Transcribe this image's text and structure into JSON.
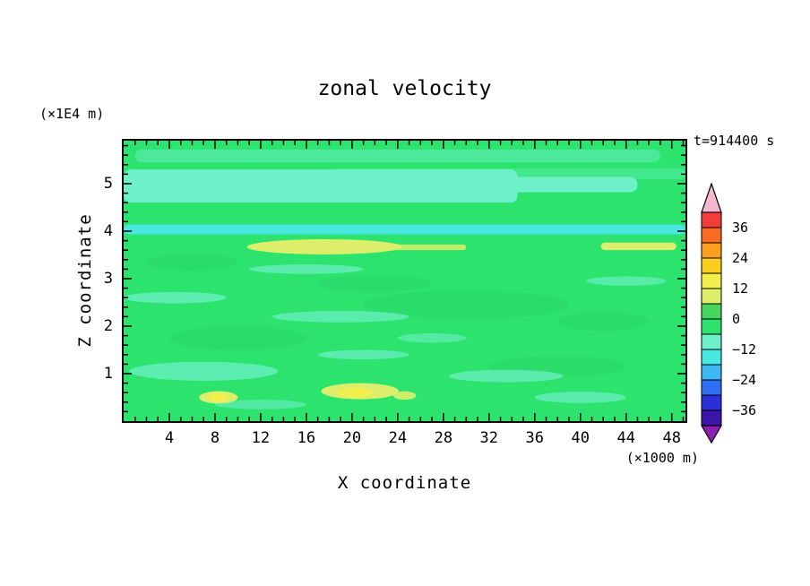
{
  "chart_data": {
    "type": "filled_contour",
    "title": "zonal velocity",
    "time_label": "t=914400 s",
    "xlabel": "X coordinate",
    "ylabel": "Z coordinate",
    "x_axis_unit": "(×1000 m)",
    "y_axis_unit": "(×1E4 m)",
    "xlim": [
      0,
      49.2
    ],
    "ylim": [
      0,
      5.905
    ],
    "x_major_ticks": [
      4,
      8,
      12,
      16,
      20,
      24,
      28,
      32,
      36,
      40,
      44,
      48
    ],
    "x_minor_step": 1,
    "y_major_ticks": [
      1,
      2,
      3,
      4,
      5
    ],
    "y_minor_step": 0.2,
    "contour_interval": 6,
    "levels_range": [
      -42,
      42
    ],
    "background_level_color": "#2be36d",
    "colorbar": {
      "labels": [
        "36",
        "24",
        "12",
        "0",
        "−12",
        "−24",
        "−36"
      ],
      "over_color": "#f5b8cf",
      "under_color": "#8c1fb4",
      "segments": [
        {
          "range": [
            36,
            42
          ],
          "color": "#f23d3d"
        },
        {
          "range": [
            30,
            36
          ],
          "color": "#fb6b24"
        },
        {
          "range": [
            24,
            30
          ],
          "color": "#fc9f20"
        },
        {
          "range": [
            18,
            24
          ],
          "color": "#fccf1f"
        },
        {
          "range": [
            12,
            18
          ],
          "color": "#f2ee4c"
        },
        {
          "range": [
            6,
            12
          ],
          "color": "#ddef6a"
        },
        {
          "range": [
            0,
            6
          ],
          "color": "#44d65c"
        },
        {
          "range": [
            -6,
            0
          ],
          "color": "#2be36d"
        },
        {
          "range": [
            -12,
            -6
          ],
          "color": "#6ef0c8"
        },
        {
          "range": [
            -18,
            -12
          ],
          "color": "#46e8e0"
        },
        {
          "range": [
            -24,
            -18
          ],
          "color": "#3fb9f2"
        },
        {
          "range": [
            -30,
            -24
          ],
          "color": "#2f6ff5"
        },
        {
          "range": [
            -36,
            -30
          ],
          "color": "#2b2fd8"
        },
        {
          "range": [
            -42,
            -36
          ],
          "color": "#3c14a8"
        }
      ]
    },
    "features": [
      {
        "shape": "ellipse",
        "x": 30,
        "z": 2.45,
        "rx": 9,
        "rz": 0.3,
        "color": "#29cf63",
        "opacity": 0.35
      },
      {
        "shape": "ellipse",
        "x": 10,
        "z": 1.75,
        "rx": 6,
        "rz": 0.25,
        "color": "#29cf63",
        "opacity": 0.35
      },
      {
        "shape": "ellipse",
        "x": 38,
        "z": 1.15,
        "rx": 6,
        "rz": 0.22,
        "color": "#29cf63",
        "opacity": 0.35
      },
      {
        "shape": "ellipse",
        "x": 22,
        "z": 2.9,
        "rx": 5,
        "rz": 0.18,
        "color": "#29cf63",
        "opacity": 0.3
      },
      {
        "shape": "ellipse",
        "x": 42,
        "z": 2.1,
        "rx": 4,
        "rz": 0.2,
        "color": "#29cf63",
        "opacity": 0.3
      },
      {
        "shape": "ellipse",
        "x": 6,
        "z": 3.35,
        "rx": 4,
        "rz": 0.18,
        "color": "#29cf63",
        "opacity": 0.3
      },
      {
        "shape": "band",
        "x0": 1,
        "x1": 47,
        "z0": 5.45,
        "z1": 5.72,
        "color": "#6ef0c8",
        "opacity": 0.5
      },
      {
        "shape": "band",
        "x0": 18,
        "x1": 49.2,
        "z0": 5.1,
        "z1": 5.32,
        "color": "#6ef0c8",
        "opacity": 0.35
      },
      {
        "shape": "band",
        "x0": 0,
        "x1": 34.5,
        "z0": 4.6,
        "z1": 5.3,
        "color": "#6ef0c8"
      },
      {
        "shape": "band",
        "x0": 30,
        "x1": 45,
        "z0": 4.82,
        "z1": 5.14,
        "color": "#6ef0c8"
      },
      {
        "shape": "band",
        "x0": 0,
        "x1": 49.2,
        "z0": 3.93,
        "z1": 4.14,
        "color": "#46e8e0"
      },
      {
        "shape": "ellipse",
        "x": 4.5,
        "z": 2.6,
        "rx": 4.5,
        "rz": 0.12,
        "color": "#6ef0c8",
        "opacity": 0.75
      },
      {
        "shape": "ellipse",
        "x": 16,
        "z": 3.2,
        "rx": 5,
        "rz": 0.1,
        "color": "#6ef0c8",
        "opacity": 0.7
      },
      {
        "shape": "ellipse",
        "x": 19,
        "z": 2.2,
        "rx": 6,
        "rz": 0.12,
        "color": "#6ef0c8",
        "opacity": 0.7
      },
      {
        "shape": "ellipse",
        "x": 7,
        "z": 1.05,
        "rx": 6.5,
        "rz": 0.2,
        "color": "#6ef0c8",
        "opacity": 0.75
      },
      {
        "shape": "ellipse",
        "x": 21,
        "z": 1.4,
        "rx": 4,
        "rz": 0.1,
        "color": "#6ef0c8",
        "opacity": 0.7
      },
      {
        "shape": "ellipse",
        "x": 33.5,
        "z": 0.95,
        "rx": 5,
        "rz": 0.13,
        "color": "#6ef0c8",
        "opacity": 0.7
      },
      {
        "shape": "ellipse",
        "x": 44,
        "z": 2.95,
        "rx": 3.5,
        "rz": 0.1,
        "color": "#6ef0c8",
        "opacity": 0.65
      },
      {
        "shape": "ellipse",
        "x": 40,
        "z": 0.5,
        "rx": 4,
        "rz": 0.12,
        "color": "#6ef0c8",
        "opacity": 0.7
      },
      {
        "shape": "ellipse",
        "x": 27,
        "z": 1.75,
        "rx": 3,
        "rz": 0.1,
        "color": "#6ef0c8",
        "opacity": 0.6
      },
      {
        "shape": "ellipse",
        "x": 12,
        "z": 0.35,
        "rx": 4,
        "rz": 0.1,
        "color": "#6ef0c8",
        "opacity": 0.6
      },
      {
        "shape": "ellipse",
        "x": 17.6,
        "z": 3.67,
        "rx": 6.8,
        "rz": 0.16,
        "color": "#ddef6a"
      },
      {
        "shape": "band",
        "x0": 23,
        "x1": 30,
        "z0": 3.6,
        "z1": 3.72,
        "color": "#ddef6a",
        "opacity": 0.85
      },
      {
        "shape": "band",
        "x0": 41.8,
        "x1": 48.4,
        "z0": 3.6,
        "z1": 3.76,
        "color": "#ddef6a"
      },
      {
        "shape": "ellipse",
        "x": 20.7,
        "z": 0.63,
        "rx": 3.4,
        "rz": 0.17,
        "color": "#ddef6a"
      },
      {
        "shape": "ellipse",
        "x": 20.3,
        "z": 0.6,
        "rx": 1.5,
        "rz": 0.1,
        "color": "#f2ee4c"
      },
      {
        "shape": "ellipse",
        "x": 8.3,
        "z": 0.5,
        "rx": 1.7,
        "rz": 0.13,
        "color": "#ddef6a"
      },
      {
        "shape": "ellipse",
        "x": 8.3,
        "z": 0.5,
        "rx": 0.8,
        "rz": 0.08,
        "color": "#f2ee4c"
      },
      {
        "shape": "ellipse",
        "x": 24.6,
        "z": 0.54,
        "rx": 1.0,
        "rz": 0.09,
        "color": "#ddef6a",
        "opacity": 0.9
      }
    ],
    "estimated_grid": {
      "note": "approximate zonal velocity values (m/s) read from fill colors; rows ordered top (largest z) to bottom",
      "x": [
        2,
        6,
        10,
        14,
        18,
        22,
        26,
        30,
        34,
        38,
        42,
        46
      ],
      "z": [
        5.6,
        5.1,
        4.7,
        4.3,
        4.0,
        3.65,
        3.2,
        2.7,
        2.2,
        1.7,
        1.2,
        0.65,
        0.25
      ],
      "values": [
        [
          0,
          0,
          -4,
          -4,
          -4,
          0,
          0,
          0,
          0,
          0,
          0,
          0
        ],
        [
          -8,
          -8,
          -8,
          -8,
          -8,
          -8,
          -4,
          -8,
          -8,
          -4,
          0,
          0
        ],
        [
          -8,
          -8,
          -8,
          -8,
          -8,
          -8,
          -8,
          -4,
          0,
          0,
          0,
          0
        ],
        [
          0,
          0,
          0,
          0,
          0,
          0,
          0,
          0,
          0,
          0,
          0,
          0
        ],
        [
          -14,
          -14,
          -14,
          -14,
          -14,
          -14,
          -14,
          -14,
          -14,
          -14,
          -14,
          -14
        ],
        [
          0,
          4,
          8,
          8,
          8,
          8,
          4,
          0,
          0,
          0,
          8,
          8
        ],
        [
          0,
          0,
          -4,
          -4,
          -4,
          0,
          0,
          0,
          0,
          0,
          0,
          0
        ],
        [
          -4,
          -4,
          0,
          0,
          0,
          -4,
          -4,
          0,
          0,
          0,
          -4,
          0
        ],
        [
          0,
          0,
          0,
          -4,
          -4,
          -4,
          0,
          0,
          -4,
          0,
          0,
          0
        ],
        [
          0,
          -4,
          0,
          0,
          0,
          -4,
          -4,
          0,
          0,
          0,
          -4,
          0
        ],
        [
          0,
          -4,
          -4,
          0,
          -4,
          0,
          0,
          0,
          -4,
          -4,
          0,
          0
        ],
        [
          0,
          4,
          8,
          4,
          8,
          14,
          8,
          0,
          0,
          0,
          0,
          0
        ],
        [
          0,
          0,
          -4,
          0,
          0,
          4,
          0,
          0,
          0,
          0,
          0,
          0
        ]
      ]
    }
  }
}
